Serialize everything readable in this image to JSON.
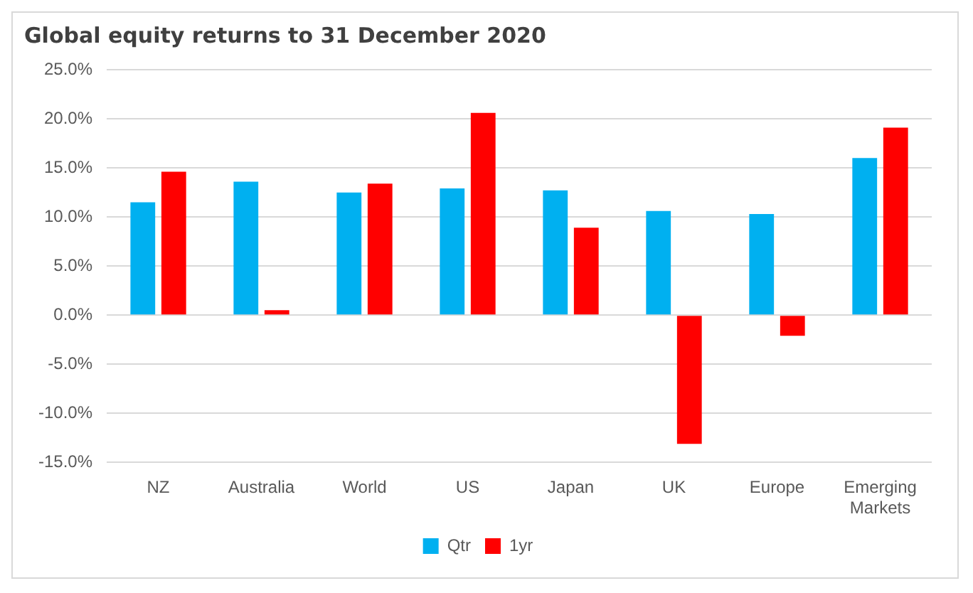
{
  "chart_data": {
    "type": "bar",
    "title": "Global equity returns to 31 December 2020",
    "categories": [
      "NZ",
      "Australia",
      "World",
      "US",
      "Japan",
      "UK",
      "Europe",
      "Emerging Markets"
    ],
    "series": [
      {
        "name": "Qtr",
        "color": "#00b0f0",
        "values": [
          11.5,
          13.6,
          12.5,
          12.9,
          12.7,
          10.6,
          10.3,
          16.0
        ]
      },
      {
        "name": "1yr",
        "color": "#ff0000",
        "values": [
          14.6,
          0.5,
          13.4,
          20.6,
          8.9,
          -13.1,
          -2.1,
          19.1
        ]
      }
    ],
    "ylim": [
      -15,
      25
    ],
    "yticks": [
      {
        "value": -15,
        "label": "-15.0%"
      },
      {
        "value": -10,
        "label": "-10.0%"
      },
      {
        "value": -5,
        "label": "-5.0%"
      },
      {
        "value": 0,
        "label": "0.0%"
      },
      {
        "value": 5,
        "label": "5.0%"
      },
      {
        "value": 10,
        "label": "10.0%"
      },
      {
        "value": 15,
        "label": "15.0%"
      },
      {
        "value": 20,
        "label": "20.0%"
      },
      {
        "value": 25,
        "label": "25.0%"
      }
    ],
    "grid": "y",
    "legend": "bottom"
  }
}
